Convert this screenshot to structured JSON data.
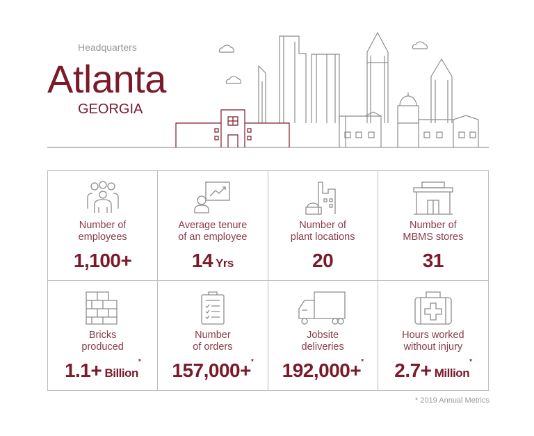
{
  "header": {
    "eyebrow": "Headquarters",
    "city": "Atlanta",
    "state": "GEORGIA"
  },
  "colors": {
    "accent": "#7a1a2a",
    "label": "#8a3a48",
    "line": "#bdbdbd",
    "icon": "#8c8c8c"
  },
  "stats": [
    {
      "icon": "people-group-icon",
      "label1": "Number of",
      "label2": "employees",
      "value": "1,100+",
      "unit": "",
      "asterisk": ""
    },
    {
      "icon": "presenter-chart-icon",
      "label1": "Average tenure",
      "label2": "of an employee",
      "value": "14",
      "unit": " Yrs",
      "asterisk": ""
    },
    {
      "icon": "factory-icon",
      "label1": "Number of",
      "label2": "plant locations",
      "value": "20",
      "unit": "",
      "asterisk": ""
    },
    {
      "icon": "storefront-icon",
      "label1": "Number of",
      "label2": "MBMS stores",
      "value": "31",
      "unit": "",
      "asterisk": ""
    },
    {
      "icon": "brick-wall-icon",
      "label1": "Bricks",
      "label2": "produced",
      "value": "1.1+",
      "unit": " Billion",
      "asterisk": "*"
    },
    {
      "icon": "clipboard-checklist-icon",
      "label1": "Number",
      "label2": "of orders",
      "value": "157,000+",
      "unit": "",
      "asterisk": "*"
    },
    {
      "icon": "truck-icon",
      "label1": "Jobsite",
      "label2": "deliveries",
      "value": "192,000+",
      "unit": "",
      "asterisk": "*"
    },
    {
      "icon": "first-aid-kit-icon",
      "label1": "Hours worked",
      "label2": "without injury",
      "value": "2.7+",
      "unit": " Million",
      "asterisk": "*"
    }
  ],
  "footnote": "* 2019 Annual Metrics"
}
